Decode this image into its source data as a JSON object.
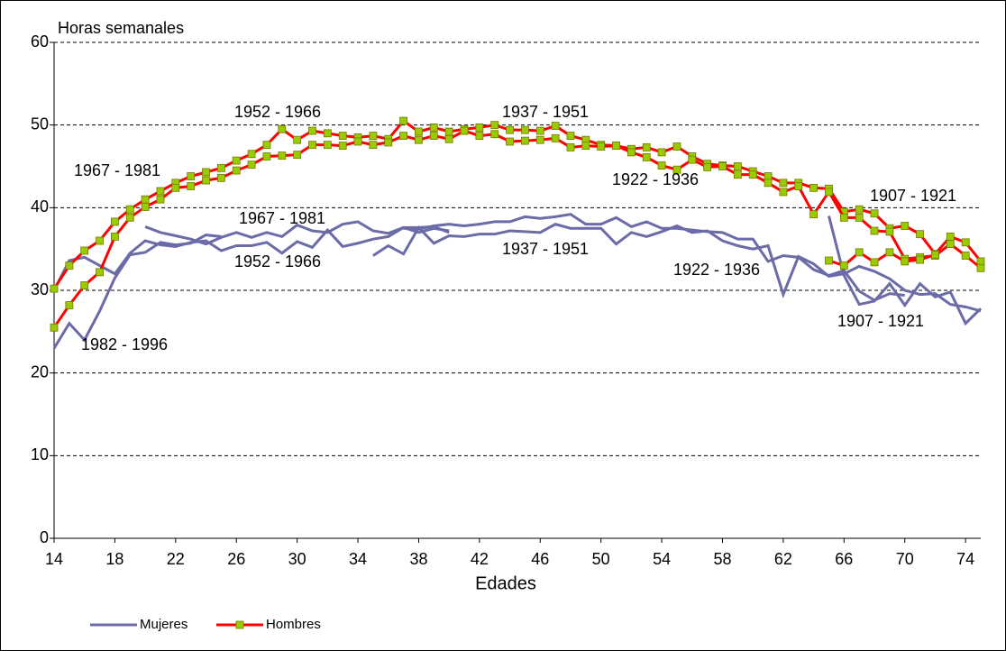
{
  "chart_data": {
    "type": "line",
    "ylabel": "Horas semanales",
    "xlabel": "Edades",
    "xlim": [
      14,
      75
    ],
    "xticks": [
      14,
      18,
      22,
      26,
      30,
      34,
      38,
      42,
      46,
      50,
      54,
      58,
      62,
      66,
      70,
      74
    ],
    "ylim": [
      0,
      60
    ],
    "yticks": [
      0,
      10,
      20,
      30,
      40,
      50,
      60
    ],
    "grid": true,
    "groups": [
      {
        "name": "Mujeres",
        "color": "#6b6ba8",
        "marker": false,
        "lines": [
          {
            "x": [
              14,
              15,
              16,
              17,
              18,
              19,
              20,
              21,
              22,
              23,
              24,
              25
            ],
            "values": [
              23,
              26,
              24,
              27.5,
              31.5,
              34.3,
              34.6,
              35.8,
              35.5,
              35.7,
              36.7,
              36.5
            ]
          },
          {
            "x": [
              14,
              15,
              16,
              17,
              18,
              19,
              20,
              21,
              22,
              23,
              24,
              25,
              26,
              27,
              28,
              29,
              30,
              31,
              32,
              33,
              34,
              35,
              36,
              37,
              38,
              39,
              40
            ],
            "values": [
              30,
              33.6,
              34,
              33,
              32,
              34.5,
              36,
              35.5,
              35.3,
              35.8,
              36,
              34.8,
              35.4,
              35.4,
              35.8,
              34.5,
              35.9,
              35.2,
              37.3,
              35.3,
              35.7,
              36.2,
              36.5,
              37.6,
              37.6,
              37.7,
              37
            ]
          },
          {
            "x": [
              20,
              21,
              22,
              23,
              24,
              25,
              26,
              27,
              28,
              29,
              30,
              31,
              32,
              33,
              34,
              35,
              36,
              37,
              38,
              39,
              40
            ],
            "values": [
              37.7,
              37,
              36.6,
              36.2,
              35.6,
              36.4,
              37,
              36.4,
              37,
              36.5,
              37.9,
              37.2,
              37,
              38,
              38.3,
              37.2,
              36.9,
              37.6,
              37,
              37.5,
              37.2
            ]
          },
          {
            "x": [
              35,
              36,
              37,
              38,
              39,
              40,
              41,
              42,
              43,
              44,
              45,
              46,
              47,
              48,
              49,
              50,
              51,
              52,
              53,
              54,
              55,
              56,
              57,
              58,
              59,
              60,
              61,
              62,
              63,
              64,
              65,
              66,
              67,
              68,
              69,
              70,
              71,
              72,
              73,
              74,
              75
            ],
            "values": [
              34.2,
              35.4,
              34.4,
              37.6,
              35.7,
              36.6,
              36.5,
              36.8,
              36.8,
              37.2,
              37.1,
              37,
              38,
              37.5,
              37.5,
              37.5,
              35.6,
              37,
              36.5,
              37.1,
              37.8,
              37,
              37.2,
              36,
              35.4,
              35,
              35.4,
              29.5,
              34.1,
              33.2,
              31.7,
              32,
              32.9,
              32.3,
              31.4,
              30,
              29.5,
              29.6,
              28.3,
              28,
              27.5
            ]
          },
          {
            "x": [
              37,
              38,
              39,
              40,
              41,
              42,
              43,
              44,
              45,
              46,
              47,
              48,
              49,
              50,
              51,
              52,
              53,
              54,
              55,
              56,
              57,
              58,
              59,
              60,
              61,
              62,
              63,
              64,
              65,
              66,
              67,
              68,
              69,
              70
            ],
            "values": [
              37.5,
              37.4,
              37.8,
              38,
              37.8,
              38,
              38.3,
              38.3,
              38.9,
              38.7,
              38.9,
              39.2,
              38,
              38,
              38.8,
              37.7,
              38.3,
              37.5,
              37.5,
              37.3,
              37.1,
              37,
              36.2,
              36.2,
              33.5,
              34.2,
              34,
              32.5,
              31.8,
              32.4,
              29.9,
              28.8,
              29.6,
              29.4
            ]
          },
          {
            "x": [
              65,
              66,
              67,
              68,
              69,
              70,
              71,
              72,
              73,
              74,
              75
            ],
            "values": [
              39,
              31.8,
              28.3,
              28.7,
              30.8,
              28.2,
              30.8,
              29.2,
              29.8,
              26,
              27.8
            ]
          }
        ]
      },
      {
        "name": "Hombres",
        "color": "#ff0000",
        "marker": true,
        "marker_color": "#99cc00",
        "lines": [
          {
            "x": [
              14,
              15,
              16,
              17,
              18,
              19,
              20,
              21,
              22,
              23,
              24,
              25,
              26,
              27,
              28,
              29,
              30,
              31,
              32,
              33,
              34,
              35,
              36,
              37,
              38,
              39,
              40,
              41,
              42,
              43,
              44,
              45,
              46,
              47,
              48,
              49,
              50,
              51,
              52,
              53,
              54,
              55,
              56,
              57,
              58,
              59,
              60,
              61,
              62,
              63,
              64,
              65,
              66,
              67,
              68,
              69,
              70,
              71,
              72,
              73,
              74,
              75
            ],
            "values": [
              30.2,
              33,
              34.8,
              36,
              38.3,
              39.8,
              41,
              42,
              43,
              43.8,
              44.3,
              44.8,
              45.7,
              46.5,
              47.6,
              49.5,
              48.2,
              49.3,
              49,
              48.7,
              48.5,
              48.7,
              48.3,
              50.5,
              49.2,
              49.7,
              49.2,
              49.5,
              49.7,
              50,
              49.4,
              49.4,
              49.3,
              49.9,
              48.7,
              48.2,
              47.6,
              47.5,
              47.1,
              47.3,
              46.7,
              47.4,
              46.2,
              45.3,
              45.1,
              45,
              44.4,
              43.8,
              43,
              43,
              42.4,
              42.3,
              39.5,
              39.8,
              39.3,
              37.5,
              37.8,
              36.8,
              34.4,
              36.5,
              35.8,
              33.5
            ]
          },
          {
            "x": [
              14,
              15,
              16,
              17,
              18,
              19,
              20,
              21,
              22,
              23,
              24,
              25,
              26,
              27,
              28,
              29,
              30,
              31,
              32,
              33,
              34,
              35,
              36,
              37,
              38,
              39,
              40,
              41,
              42,
              43,
              44,
              45,
              46,
              47,
              48,
              49,
              50,
              51,
              52,
              53,
              54,
              55,
              56,
              57,
              58,
              59,
              60,
              61,
              62,
              63,
              64,
              65,
              66,
              67,
              68,
              69,
              70,
              71,
              72,
              73,
              74,
              75
            ],
            "values": [
              25.5,
              28.2,
              30.6,
              32.2,
              36.5,
              38.8,
              40.1,
              41,
              42.4,
              42.6,
              43.3,
              43.6,
              44.5,
              45.2,
              46.2,
              46.3,
              46.4,
              47.6,
              47.6,
              47.5,
              48,
              47.6,
              47.9,
              48.7,
              48.2,
              48.7,
              48.3,
              49.3,
              48.7,
              48.9,
              48,
              48.1,
              48.2,
              48.4,
              47.3,
              47.5,
              47.4,
              47.5,
              46.7,
              46.1,
              45.1,
              44.6,
              45.8,
              44.9,
              45,
              44,
              44,
              43,
              41.9,
              42.6,
              39.2,
              41.9,
              38.8,
              38.8,
              37.2,
              37.1,
              33.8,
              34,
              34.2,
              35.6,
              34.2,
              32.7
            ]
          },
          {
            "x": [
              65,
              66,
              67,
              68,
              69,
              70,
              71,
              72
            ],
            "values": [
              33.6,
              33,
              34.6,
              33.4,
              34.6,
              33.5,
              33.7,
              34.3
            ]
          }
        ]
      }
    ],
    "annotations": [
      "1952 - 1966",
      "1937 - 1951",
      "1967 - 1981",
      "1922 - 1936",
      "1907 - 1921",
      "1967 - 1981",
      "1952 - 1966",
      "1937 - 1951",
      "1922 - 1936",
      "1982 - 1996",
      "1907 - 1921"
    ]
  }
}
